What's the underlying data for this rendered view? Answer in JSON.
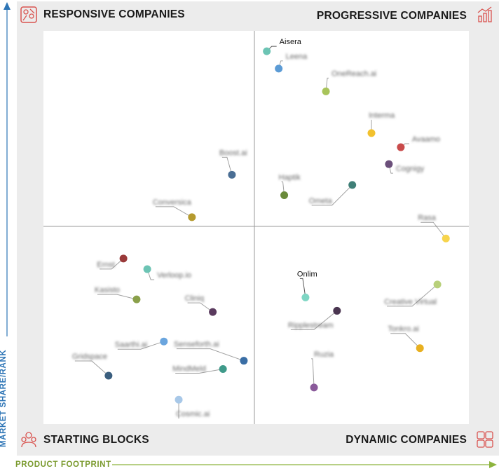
{
  "quadrants": {
    "top_left": "RESPONSIVE COMPANIES",
    "top_right": "PROGRESSIVE COMPANIES",
    "bottom_left": "STARTING BLOCKS",
    "bottom_right": "DYNAMIC COMPANIES"
  },
  "axes": {
    "x_label": "PRODUCT FOOTPRINT",
    "y_label": "MARKET SHARE/RANK",
    "x_color": "#7a9a2e",
    "y_color": "#2e75b6"
  },
  "chart_data": {
    "type": "scatter",
    "xlim": [
      0,
      100
    ],
    "ylim": [
      0,
      100
    ],
    "points": [
      {
        "label": "Aisera",
        "x": 52.5,
        "y": 94.8,
        "color": "#6cc4b4",
        "blurred": false
      },
      {
        "label": "Leena",
        "x": 55.3,
        "y": 90.4,
        "color": "#5b9bd5",
        "blurred": true
      },
      {
        "label": "OneReach.ai",
        "x": 66.4,
        "y": 84.6,
        "color": "#a8c45a",
        "blurred": true
      },
      {
        "label": "Interma",
        "x": 77.1,
        "y": 74.0,
        "color": "#f2c12e",
        "blurred": true
      },
      {
        "label": "Avaamo",
        "x": 84.0,
        "y": 70.4,
        "color": "#c94b4b",
        "blurred": true
      },
      {
        "label": "Cognigy",
        "x": 81.2,
        "y": 66.1,
        "color": "#6b4f7a",
        "blurred": true
      },
      {
        "label": "Boost.ai",
        "x": 44.3,
        "y": 63.4,
        "color": "#4a6e94",
        "blurred": true
      },
      {
        "label": "Haptik",
        "x": 56.6,
        "y": 58.2,
        "color": "#6a8a3a",
        "blurred": true
      },
      {
        "label": "Ometa",
        "x": 72.6,
        "y": 60.8,
        "color": "#3f7f77",
        "blurred": true
      },
      {
        "label": "Conversica",
        "x": 34.9,
        "y": 52.6,
        "color": "#b59a2e",
        "blurred": true
      },
      {
        "label": "Rasa",
        "x": 94.6,
        "y": 47.2,
        "color": "#f7d44c",
        "blurred": true
      },
      {
        "label": "Onlim",
        "x": 61.6,
        "y": 32.2,
        "color": "#7fd6c4",
        "blurred": false
      },
      {
        "label": "Ernst",
        "x": 18.8,
        "y": 42.1,
        "color": "#9a3a3a",
        "blurred": true
      },
      {
        "label": "Verloop.io",
        "x": 24.4,
        "y": 39.4,
        "color": "#6cc4b4",
        "blurred": true
      },
      {
        "label": "Kasisto",
        "x": 21.9,
        "y": 31.7,
        "color": "#8aa04a",
        "blurred": true
      },
      {
        "label": "Cliniq",
        "x": 39.8,
        "y": 28.5,
        "color": "#5a3a5e",
        "blurred": true
      },
      {
        "label": "Ripplestream",
        "x": 69.0,
        "y": 28.8,
        "color": "#4a3550",
        "blurred": true
      },
      {
        "label": "Creative Virtual",
        "x": 92.6,
        "y": 35.5,
        "color": "#b8d07a",
        "blurred": true
      },
      {
        "label": "Saarthi.ai",
        "x": 28.3,
        "y": 21.0,
        "color": "#6aa5de",
        "blurred": true
      },
      {
        "label": "Senseforth.ai",
        "x": 47.1,
        "y": 16.1,
        "color": "#3a6ea5",
        "blurred": true
      },
      {
        "label": "Tonkro.ai",
        "x": 88.5,
        "y": 19.3,
        "color": "#e8b020",
        "blurred": true
      },
      {
        "label": "Gridspace",
        "x": 15.3,
        "y": 12.3,
        "color": "#3a5e7e",
        "blurred": true
      },
      {
        "label": "MindMeld",
        "x": 42.2,
        "y": 14.0,
        "color": "#3f9a8a",
        "blurred": true
      },
      {
        "label": "Ruzia",
        "x": 63.6,
        "y": 9.3,
        "color": "#8a5a9a",
        "blurred": true
      },
      {
        "label": "Cosmic.ai",
        "x": 31.8,
        "y": 6.2,
        "color": "#a8c8e8",
        "blurred": true
      }
    ]
  }
}
